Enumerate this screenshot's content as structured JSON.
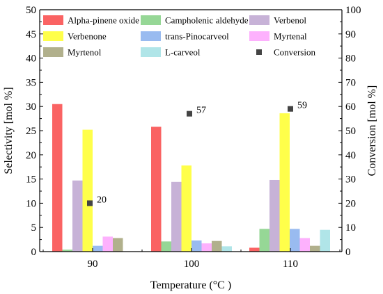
{
  "chart_data": {
    "type": "bar",
    "categories": [
      "90",
      "100",
      "110"
    ],
    "xlabel": "Temperature (°C )",
    "ylabel": "Selectivity [mol %]",
    "y2label": "Conversion [mol %]",
    "ylim": [
      0,
      50
    ],
    "y2lim": [
      0,
      100
    ],
    "yticks": [
      "0",
      "5",
      "10",
      "15",
      "20",
      "25",
      "30",
      "35",
      "40",
      "45",
      "50"
    ],
    "y2ticks": [
      "0",
      "10",
      "20",
      "30",
      "40",
      "50",
      "60",
      "70",
      "80",
      "90",
      "100"
    ],
    "grid": false,
    "legend_position": "top",
    "series": [
      {
        "name": "Alpha-pinene oxide",
        "color": "#fa6363",
        "values": [
          30.5,
          25.8,
          0.8
        ]
      },
      {
        "name": "Campholenic aldehyde",
        "color": "#96d796",
        "values": [
          0.4,
          2.1,
          4.7
        ]
      },
      {
        "name": "Verbenol",
        "color": "#c7b2d7",
        "values": [
          14.7,
          14.4,
          14.8
        ]
      },
      {
        "name": "Verbenone",
        "color": "#ffff4a",
        "values": [
          25.2,
          17.8,
          28.6
        ]
      },
      {
        "name": "trans-Pinocarveol",
        "color": "#99bbf0",
        "values": [
          1.2,
          2.3,
          4.7
        ]
      },
      {
        "name": "Myrtenal",
        "color": "#fdb1fd",
        "values": [
          3.1,
          1.7,
          2.8
        ]
      },
      {
        "name": "Myrtenol",
        "color": "#b1b08c",
        "values": [
          2.8,
          2.2,
          1.2
        ]
      },
      {
        "name": "L-carveol",
        "color": "#b0e5e8",
        "values": [
          0,
          1.1,
          4.5
        ]
      }
    ],
    "conversion": {
      "name": "Conversion",
      "color": "#444444",
      "axis": "right",
      "values": [
        20,
        57,
        59
      ],
      "labels": [
        "20",
        "57",
        "59"
      ]
    }
  }
}
